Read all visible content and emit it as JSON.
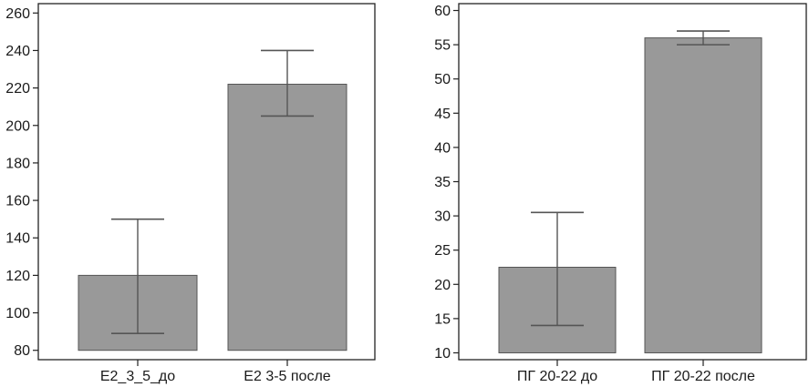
{
  "chart_data": [
    {
      "type": "bar",
      "categories": [
        "E2_3_5_до",
        "E2 3-5 после"
      ],
      "values": [
        120,
        222
      ],
      "error_low": [
        89,
        205
      ],
      "error_high": [
        150,
        240
      ],
      "ylim": [
        75,
        265
      ],
      "yticks": [
        80,
        100,
        120,
        140,
        160,
        180,
        200,
        220,
        240,
        260
      ],
      "bar_color": "#999999",
      "grid": false,
      "title": "",
      "xlabel": "",
      "ylabel": ""
    },
    {
      "type": "bar",
      "categories": [
        "ПГ 20-22 до",
        "ПГ 20-22 после"
      ],
      "values": [
        22.5,
        56
      ],
      "error_low": [
        14,
        55
      ],
      "error_high": [
        30.5,
        57
      ],
      "ylim": [
        9,
        61
      ],
      "yticks": [
        10,
        15,
        20,
        25,
        30,
        35,
        40,
        45,
        50,
        55,
        60
      ],
      "bar_color": "#999999",
      "grid": false,
      "title": "",
      "xlabel": "",
      "ylabel": ""
    }
  ]
}
